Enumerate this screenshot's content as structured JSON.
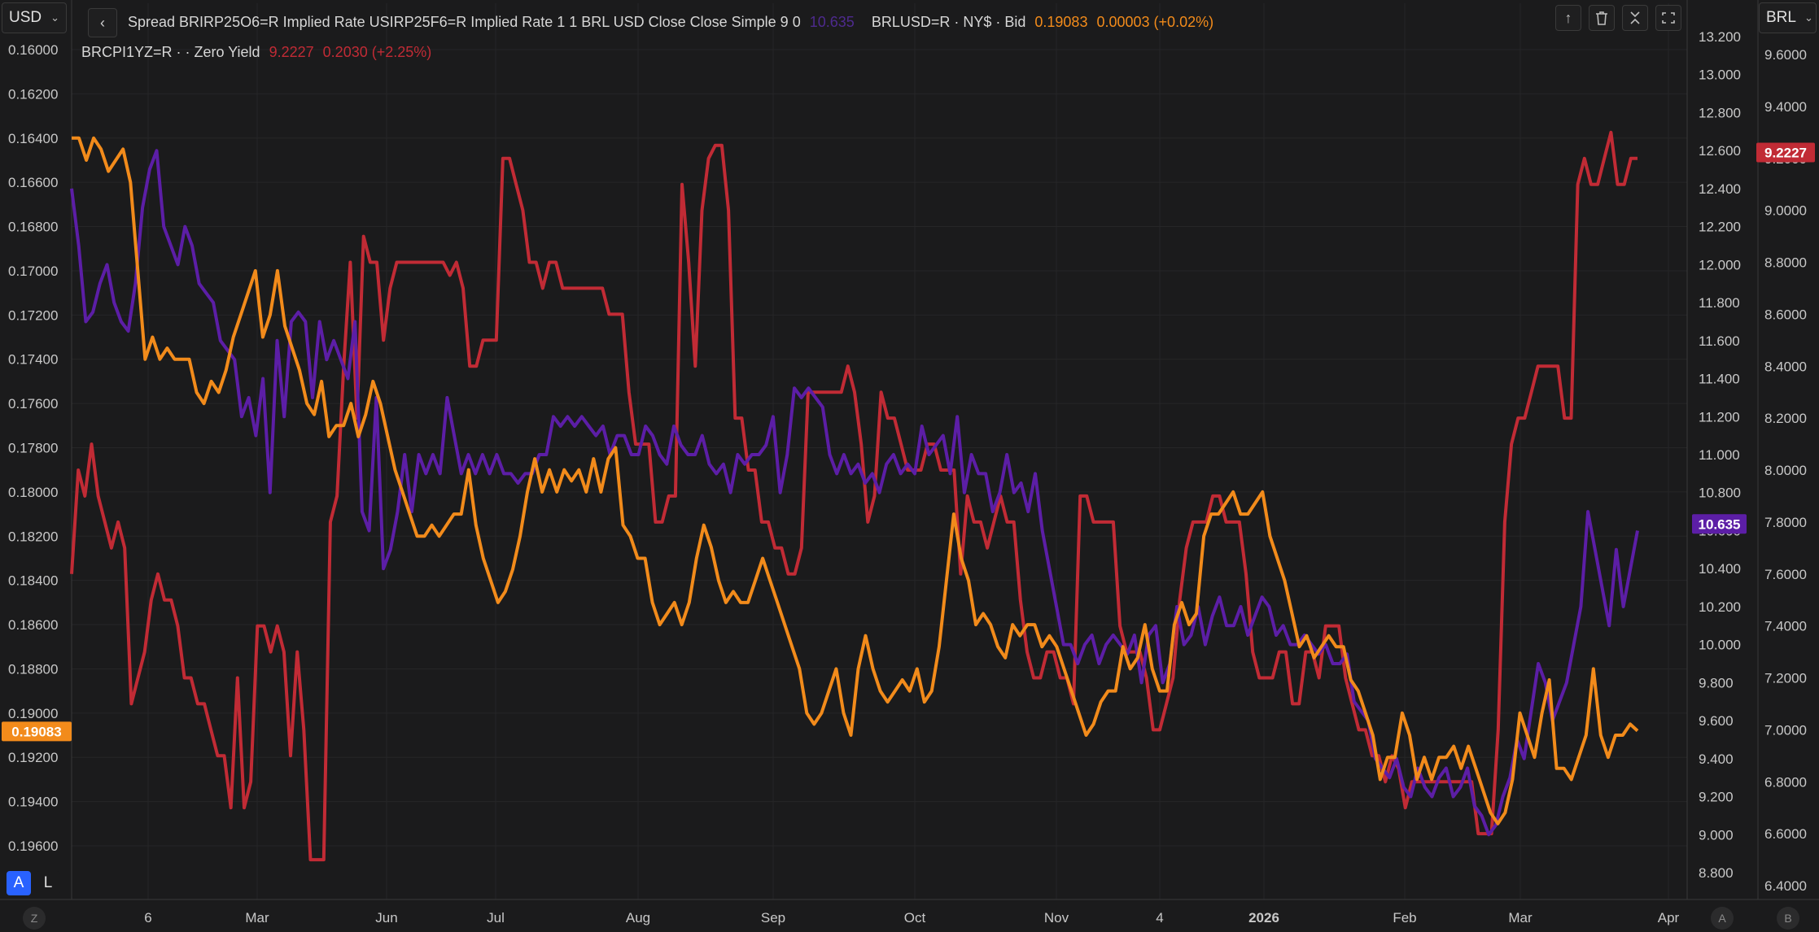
{
  "toolbar": {
    "left_currency": "USD",
    "right_currency": "BRL",
    "mode_a": "A",
    "mode_l": "L",
    "corner_left": "Z",
    "corner_mid": "A",
    "corner_right": "B"
  },
  "legend": {
    "line1_label": "Spread BRIRP25O6=R Implied Rate USIRP25F6=R Implied Rate 1 1 BRL USD Close Close Simple 9 0",
    "line1_value": "10.635",
    "line1b_label": "BRLUSD=R · NY$ · Bid",
    "line1b_value": "0.19083",
    "line1b_change": "0.00003 (+0.02%)",
    "line2_label": "BRCPI1YZ=R · · Zero Yield",
    "line2_value": "9.2227",
    "line2_change": "0.2030 (+2.25%)"
  },
  "chart_data": {
    "type": "line",
    "x_labels": [
      "6",
      "Mar",
      "Jun",
      "Jul",
      "Aug",
      "Sep",
      "Oct",
      "Nov",
      "4",
      "2026",
      "Feb",
      "Mar",
      "Apr"
    ],
    "axes": {
      "left": {
        "ticks": [
          "0.16000",
          "0.16200",
          "0.16400",
          "0.16600",
          "0.16800",
          "0.17000",
          "0.17200",
          "0.17400",
          "0.17600",
          "0.17800",
          "0.18000",
          "0.18200",
          "0.18400",
          "0.18600",
          "0.18800",
          "0.19000",
          "0.19200",
          "0.19400",
          "0.19600"
        ],
        "inverted": true,
        "range": [
          0.16,
          0.197
        ]
      },
      "mid": {
        "ticks": [
          "13.200",
          "13.000",
          "12.800",
          "12.600",
          "12.400",
          "12.200",
          "12.000",
          "11.800",
          "11.600",
          "11.400",
          "11.200",
          "11.000",
          "10.800",
          "10.600",
          "10.400",
          "10.200",
          "10.000",
          "9.800",
          "9.600",
          "9.400",
          "9.200",
          "9.000",
          "8.800"
        ],
        "range": [
          8.7,
          13.2
        ]
      },
      "right": {
        "ticks": [
          "9.6000",
          "9.4000",
          "9.2000",
          "9.0000",
          "8.8000",
          "8.6000",
          "8.4000",
          "8.2000",
          "8.0000",
          "7.8000",
          "7.6000",
          "7.4000",
          "7.2000",
          "7.0000",
          "6.8000",
          "6.6000",
          "6.4000"
        ],
        "range": [
          6.4,
          9.7
        ]
      }
    },
    "series": [
      {
        "name": "BRLUSD=R · NY$ · Bid",
        "color": "#f28b1b",
        "axis": "left",
        "last_value": "0.19083",
        "values": [
          0.164,
          0.164,
          0.165,
          0.164,
          0.1645,
          0.1655,
          0.165,
          0.1645,
          0.166,
          0.17,
          0.174,
          0.173,
          0.174,
          0.1735,
          0.174,
          0.174,
          0.174,
          0.1755,
          0.176,
          0.175,
          0.1755,
          0.1745,
          0.173,
          0.172,
          0.171,
          0.17,
          0.173,
          0.172,
          0.17,
          0.1725,
          0.1735,
          0.1745,
          0.176,
          0.1765,
          0.175,
          0.1775,
          0.177,
          0.177,
          0.176,
          0.1775,
          0.1765,
          0.175,
          0.176,
          0.1775,
          0.179,
          0.18,
          0.181,
          0.182,
          0.182,
          0.1815,
          0.182,
          0.1815,
          0.181,
          0.181,
          0.179,
          0.1815,
          0.183,
          0.184,
          0.185,
          0.1845,
          0.1835,
          0.182,
          0.18,
          0.1785,
          0.18,
          0.179,
          0.18,
          0.179,
          0.1795,
          0.179,
          0.18,
          0.1785,
          0.18,
          0.1785,
          0.178,
          0.1815,
          0.182,
          0.183,
          0.183,
          0.185,
          0.186,
          0.1855,
          0.185,
          0.186,
          0.185,
          0.183,
          0.1815,
          0.1825,
          0.184,
          0.185,
          0.1845,
          0.185,
          0.185,
          0.184,
          0.183,
          0.184,
          0.185,
          0.186,
          0.187,
          0.188,
          0.19,
          0.1905,
          0.19,
          0.189,
          0.188,
          0.19,
          0.191,
          0.188,
          0.1865,
          0.188,
          0.189,
          0.1895,
          0.189,
          0.1885,
          0.189,
          0.188,
          0.1895,
          0.189,
          0.187,
          0.184,
          0.181,
          0.183,
          0.184,
          0.186,
          0.1855,
          0.186,
          0.187,
          0.1875,
          0.186,
          0.1865,
          0.186,
          0.186,
          0.187,
          0.1865,
          0.187,
          0.188,
          0.189,
          0.19,
          0.191,
          0.1905,
          0.1895,
          0.189,
          0.189,
          0.187,
          0.188,
          0.1875,
          0.186,
          0.188,
          0.189,
          0.189,
          0.186,
          0.185,
          0.186,
          0.1855,
          0.182,
          0.181,
          0.181,
          0.1805,
          0.18,
          0.181,
          0.181,
          0.1805,
          0.18,
          0.182,
          0.183,
          0.184,
          0.1855,
          0.187,
          0.1865,
          0.1875,
          0.187,
          0.1865,
          0.187,
          0.187,
          0.1885,
          0.189,
          0.19,
          0.191,
          0.193,
          0.192,
          0.192,
          0.19,
          0.191,
          0.193,
          0.192,
          0.193,
          0.192,
          0.192,
          0.1915,
          0.1925,
          0.1915,
          0.1925,
          0.1935,
          0.1945,
          0.195,
          0.1945,
          0.193,
          0.19,
          0.191,
          0.192,
          0.19,
          0.1885,
          0.1925,
          0.1925,
          0.193,
          0.192,
          0.191,
          0.188,
          0.191,
          0.192,
          0.191,
          0.191,
          0.1905,
          0.1908
        ]
      },
      {
        "name": "Spread BRIRP25O6=R Implied Rate USIRP25F6=R Implied Rate",
        "color": "#5c1ea6",
        "axis": "mid",
        "last_value": "10.635",
        "values": [
          12.4,
          12.1,
          11.7,
          11.75,
          11.9,
          12.0,
          11.8,
          11.7,
          11.65,
          11.9,
          12.3,
          12.5,
          12.6,
          12.2,
          12.1,
          12.0,
          12.2,
          12.1,
          11.9,
          11.85,
          11.8,
          11.6,
          11.55,
          11.5,
          11.2,
          11.3,
          11.1,
          11.4,
          10.8,
          11.6,
          11.2,
          11.7,
          11.75,
          11.7,
          11.3,
          11.7,
          11.5,
          11.6,
          11.5,
          11.4,
          11.7,
          10.7,
          10.6,
          11.3,
          10.4,
          10.5,
          10.7,
          11.0,
          10.7,
          11.0,
          10.9,
          11.0,
          10.9,
          11.3,
          11.1,
          10.9,
          11.0,
          10.9,
          11.0,
          10.9,
          11.0,
          10.9,
          10.9,
          10.85,
          10.9,
          10.9,
          11.0,
          11.0,
          11.2,
          11.15,
          11.2,
          11.15,
          11.2,
          11.15,
          11.1,
          11.15,
          11.0,
          11.1,
          11.1,
          11.0,
          11.0,
          11.15,
          11.1,
          11.0,
          10.95,
          11.15,
          11.05,
          11.0,
          11.0,
          11.1,
          10.95,
          10.9,
          10.95,
          10.8,
          11.0,
          10.95,
          11.0,
          11.0,
          11.05,
          11.2,
          10.8,
          11.0,
          11.35,
          11.3,
          11.35,
          11.3,
          11.25,
          11.0,
          10.9,
          11.0,
          10.9,
          10.95,
          10.85,
          10.9,
          10.8,
          10.95,
          11.0,
          10.9,
          10.95,
          10.9,
          11.15,
          11.0,
          11.05,
          11.1,
          10.9,
          11.2,
          10.8,
          11.0,
          10.9,
          10.9,
          10.7,
          10.8,
          11.0,
          10.8,
          10.85,
          10.7,
          10.9,
          10.6,
          10.4,
          10.2,
          10.0,
          10.0,
          9.9,
          10.0,
          10.05,
          9.9,
          10.0,
          10.05,
          10.0,
          9.95,
          10.05,
          9.8,
          10.05,
          10.1,
          9.8,
          9.9,
          10.2,
          10.0,
          10.05,
          10.2,
          10.0,
          10.15,
          10.25,
          10.1,
          10.1,
          10.2,
          10.05,
          10.15,
          10.25,
          10.2,
          10.05,
          10.1,
          10.0,
          10.0,
          10.05,
          10.0,
          9.95,
          10.0,
          9.9,
          9.9,
          9.95,
          9.7,
          9.65,
          9.6,
          9.4,
          9.35,
          9.3,
          9.4,
          9.25,
          9.2,
          9.35,
          9.25,
          9.2,
          9.3,
          9.35,
          9.2,
          9.25,
          9.35,
          9.15,
          9.1,
          9.0,
          9.05,
          9.2,
          9.3,
          9.5,
          9.4,
          9.65,
          9.9,
          9.8,
          9.6,
          9.7,
          9.8,
          10.0,
          10.2,
          10.7,
          10.5,
          10.3,
          10.1,
          10.5,
          10.2,
          10.4,
          10.6
        ]
      },
      {
        "name": "BRCPI1YZ=R · · Zero Yield",
        "color": "#c12b35",
        "axis": "right",
        "last_value": "9.2227",
        "values": [
          7.6,
          8.0,
          7.9,
          8.1,
          7.9,
          7.8,
          7.7,
          7.8,
          7.7,
          7.1,
          7.2,
          7.3,
          7.5,
          7.6,
          7.5,
          7.5,
          7.4,
          7.2,
          7.2,
          7.1,
          7.1,
          7.0,
          6.9,
          6.9,
          6.7,
          7.2,
          6.7,
          6.8,
          7.4,
          7.4,
          7.3,
          7.4,
          7.3,
          6.9,
          7.3,
          7.0,
          6.5,
          6.5,
          6.5,
          7.8,
          7.9,
          8.4,
          8.8,
          8.2,
          8.9,
          8.8,
          8.8,
          8.5,
          8.7,
          8.8,
          8.8,
          8.8,
          8.8,
          8.8,
          8.8,
          8.8,
          8.8,
          8.75,
          8.8,
          8.7,
          8.4,
          8.4,
          8.5,
          8.5,
          8.5,
          9.2,
          9.2,
          9.1,
          9.0,
          8.8,
          8.8,
          8.7,
          8.8,
          8.8,
          8.7,
          8.7,
          8.7,
          8.7,
          8.7,
          8.7,
          8.7,
          8.6,
          8.6,
          8.6,
          8.3,
          8.1,
          8.1,
          8.1,
          7.8,
          7.8,
          7.9,
          7.9,
          9.1,
          8.8,
          8.4,
          9.0,
          9.2,
          9.25,
          9.25,
          9.0,
          8.2,
          8.2,
          8.0,
          8.0,
          7.8,
          7.8,
          7.7,
          7.7,
          7.6,
          7.6,
          7.7,
          8.3,
          8.3,
          8.3,
          8.3,
          8.3,
          8.3,
          8.4,
          8.3,
          8.1,
          7.8,
          7.9,
          8.3,
          8.2,
          8.2,
          8.1,
          8.0,
          8.0,
          8.0,
          8.1,
          8.1,
          8.0,
          8.0,
          8.0,
          7.6,
          7.9,
          7.8,
          7.8,
          7.7,
          7.8,
          7.9,
          7.8,
          7.8,
          7.5,
          7.3,
          7.2,
          7.2,
          7.3,
          7.3,
          7.2,
          7.2,
          7.1,
          7.9,
          7.9,
          7.8,
          7.8,
          7.8,
          7.8,
          7.4,
          7.3,
          7.3,
          7.3,
          7.2,
          7.0,
          7.0,
          7.1,
          7.2,
          7.5,
          7.7,
          7.8,
          7.8,
          7.8,
          7.9,
          7.9,
          7.8,
          7.8,
          7.8,
          7.6,
          7.3,
          7.2,
          7.2,
          7.2,
          7.3,
          7.3,
          7.1,
          7.1,
          7.3,
          7.3,
          7.2,
          7.4,
          7.4,
          7.4,
          7.2,
          7.1,
          7.0,
          7.0,
          6.9,
          6.9,
          6.8,
          6.9,
          6.85,
          6.7,
          6.8,
          6.8,
          6.8,
          6.8,
          6.8,
          6.8,
          6.8,
          6.8,
          6.8,
          6.8,
          6.6,
          6.6,
          6.6,
          7.0,
          7.8,
          8.1,
          8.2,
          8.2,
          8.3,
          8.4,
          8.4,
          8.4,
          8.4,
          8.2,
          8.2,
          9.1,
          9.2,
          9.1,
          9.1,
          9.2,
          9.3,
          9.1,
          9.1,
          9.2,
          9.2
        ]
      }
    ],
    "grid": true,
    "legend_position": "top-left"
  }
}
